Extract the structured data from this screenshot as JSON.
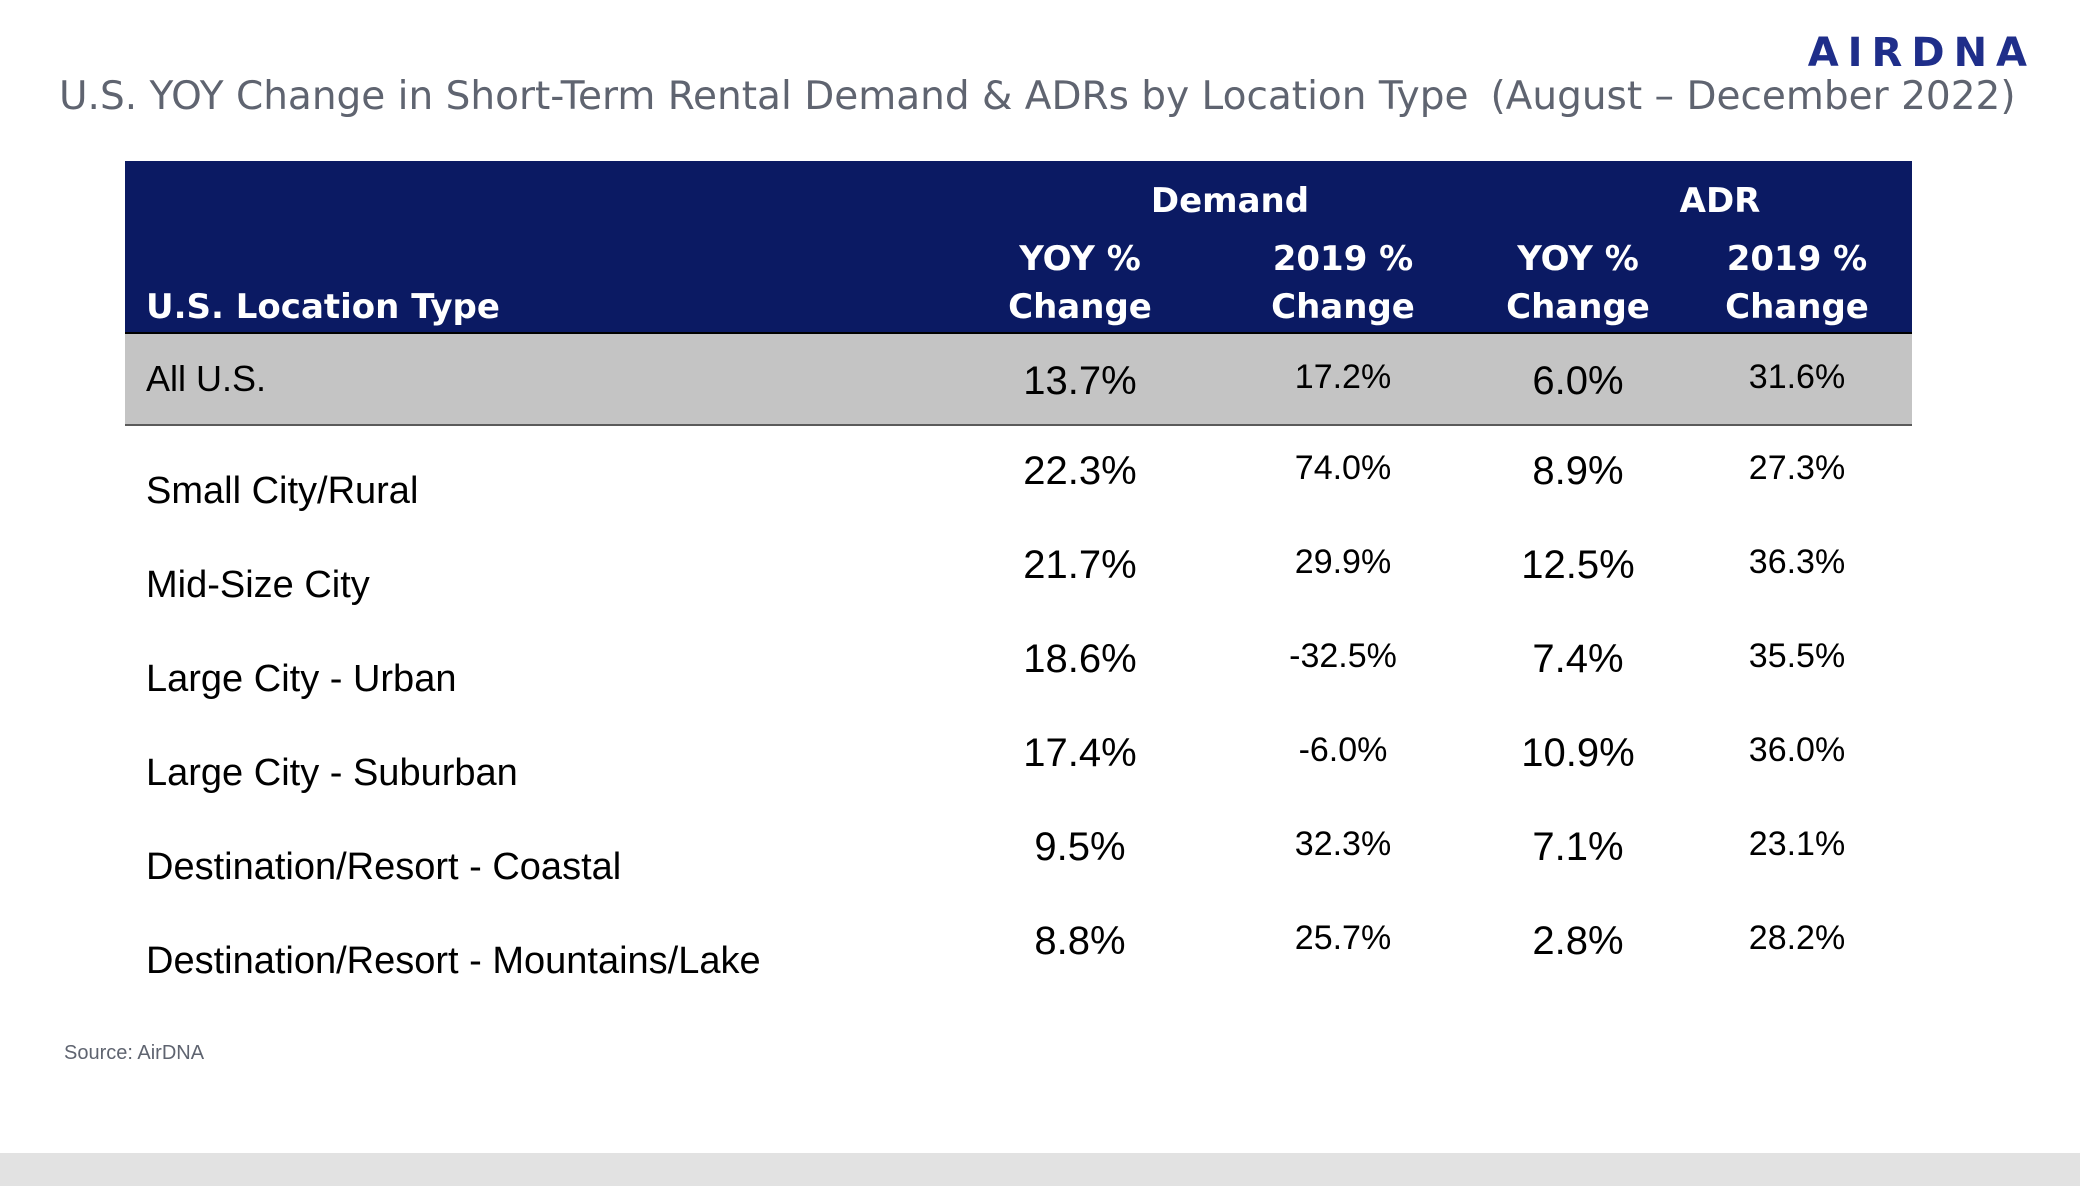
{
  "brand": "AIRDNA",
  "title_main": "U.S. YOY Change in Short-Term Rental Demand & ADRs by Location Type",
  "title_period": "(August – December 2022)",
  "source": "Source: AirDNA",
  "chart_data": {
    "type": "table",
    "group_headers": [
      "Demand",
      "ADR"
    ],
    "columns": [
      "U.S. Location Type",
      "YOY % Change",
      "2019 % Change",
      "YOY % Change",
      "2019 % Change"
    ],
    "rows": [
      {
        "label": "All U.S.",
        "values": [
          "13.7%",
          "17.2%",
          "6.0%",
          "31.6%"
        ]
      },
      {
        "label": "Small City/Rural",
        "values": [
          "22.3%",
          "74.0%",
          "8.9%",
          "27.3%"
        ]
      },
      {
        "label": "Mid-Size City",
        "values": [
          "21.7%",
          "29.9%",
          "12.5%",
          "36.3%"
        ]
      },
      {
        "label": "Large City - Urban",
        "values": [
          "18.6%",
          "-32.5%",
          "7.4%",
          "35.5%"
        ]
      },
      {
        "label": "Large City - Suburban",
        "values": [
          "17.4%",
          "-6.0%",
          "10.9%",
          "36.0%"
        ]
      },
      {
        "label": "Destination/Resort - Coastal",
        "values": [
          "9.5%",
          "32.3%",
          "7.1%",
          "23.1%"
        ]
      },
      {
        "label": "Destination/Resort - Mountains/Lake",
        "values": [
          "8.8%",
          "25.7%",
          "2.8%",
          "28.2%"
        ]
      }
    ]
  },
  "colors": {
    "header_bg": "#0b1a63",
    "total_row_bg": "#c4c4c4",
    "brand": "#1f2e8a"
  }
}
